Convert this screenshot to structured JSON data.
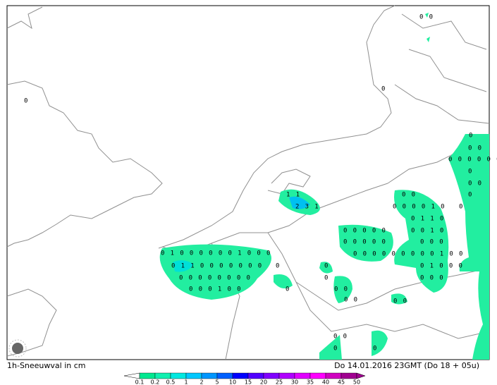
{
  "map": {
    "footer_left": "1h-Sneeuwval in cm",
    "footer_right": "Do 14.01.2016 23GMT (Do 18 + 05u)",
    "labels": [
      "0",
      "0 0",
      "0",
      "1 1",
      "2 3 1",
      "0 1 0 0 0 0 0 0 1 0 0 0",
      "0 1 1 0 0 0 0 0 0 0",
      "0 0 0 0 0 0 0 0",
      "0 0 0 1 0 0",
      "0",
      "0",
      "0",
      "0",
      "0 0",
      "0 0",
      "0 0 0 0 0",
      "0 0 0 0 0",
      "0 0 0 0 0 0 0 0 0 1 0 0",
      "0 0",
      "0 0 0 0 1 0",
      "0 1 1 0",
      "0 0 1 0",
      "0 0 0",
      "0 1 0 0 0",
      "0 0 0",
      "0 0",
      "0",
      "0 0",
      "0 0 0 0 0 0",
      "0",
      "0 0",
      "0",
      "0",
      "0 0",
      "0",
      "0"
    ]
  },
  "colorbar": {
    "levels": [
      0.1,
      0.2,
      0.5,
      1,
      2,
      5,
      10,
      15,
      20,
      25,
      30,
      35,
      40,
      45,
      50
    ],
    "colors": [
      "#00e890",
      "#10f0b0",
      "#00e8e0",
      "#00c8ff",
      "#0096ff",
      "#0060ff",
      "#0000ff",
      "#5000ff",
      "#8000ff",
      "#b000ff",
      "#e000ff",
      "#ff00ff",
      "#d000c0",
      "#a00090"
    ]
  }
}
